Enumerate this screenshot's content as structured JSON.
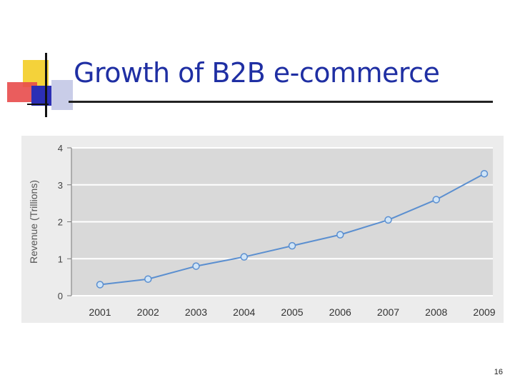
{
  "slide": {
    "title": "Growth of B2B e-commerce",
    "page_number": "16"
  },
  "colors": {
    "title": "#1f2fa3",
    "plot_background": "#d9d9d9",
    "line": "#5b8fd0",
    "marker_fill": "#cfe4f7"
  },
  "chart_data": {
    "type": "line",
    "title": "",
    "xlabel": "",
    "ylabel": "Revenue (Trillions)",
    "categories": [
      "2001",
      "2002",
      "2003",
      "2004",
      "2005",
      "2006",
      "2007",
      "2008",
      "2009"
    ],
    "series": [
      {
        "name": "",
        "values": [
          0.3,
          0.45,
          0.8,
          1.05,
          1.35,
          1.65,
          2.05,
          2.6,
          3.3
        ]
      }
    ],
    "yticks": [
      "0",
      "1",
      "2",
      "3",
      "4"
    ],
    "ylim": [
      0,
      4
    ],
    "grid": true,
    "legend": "none"
  }
}
